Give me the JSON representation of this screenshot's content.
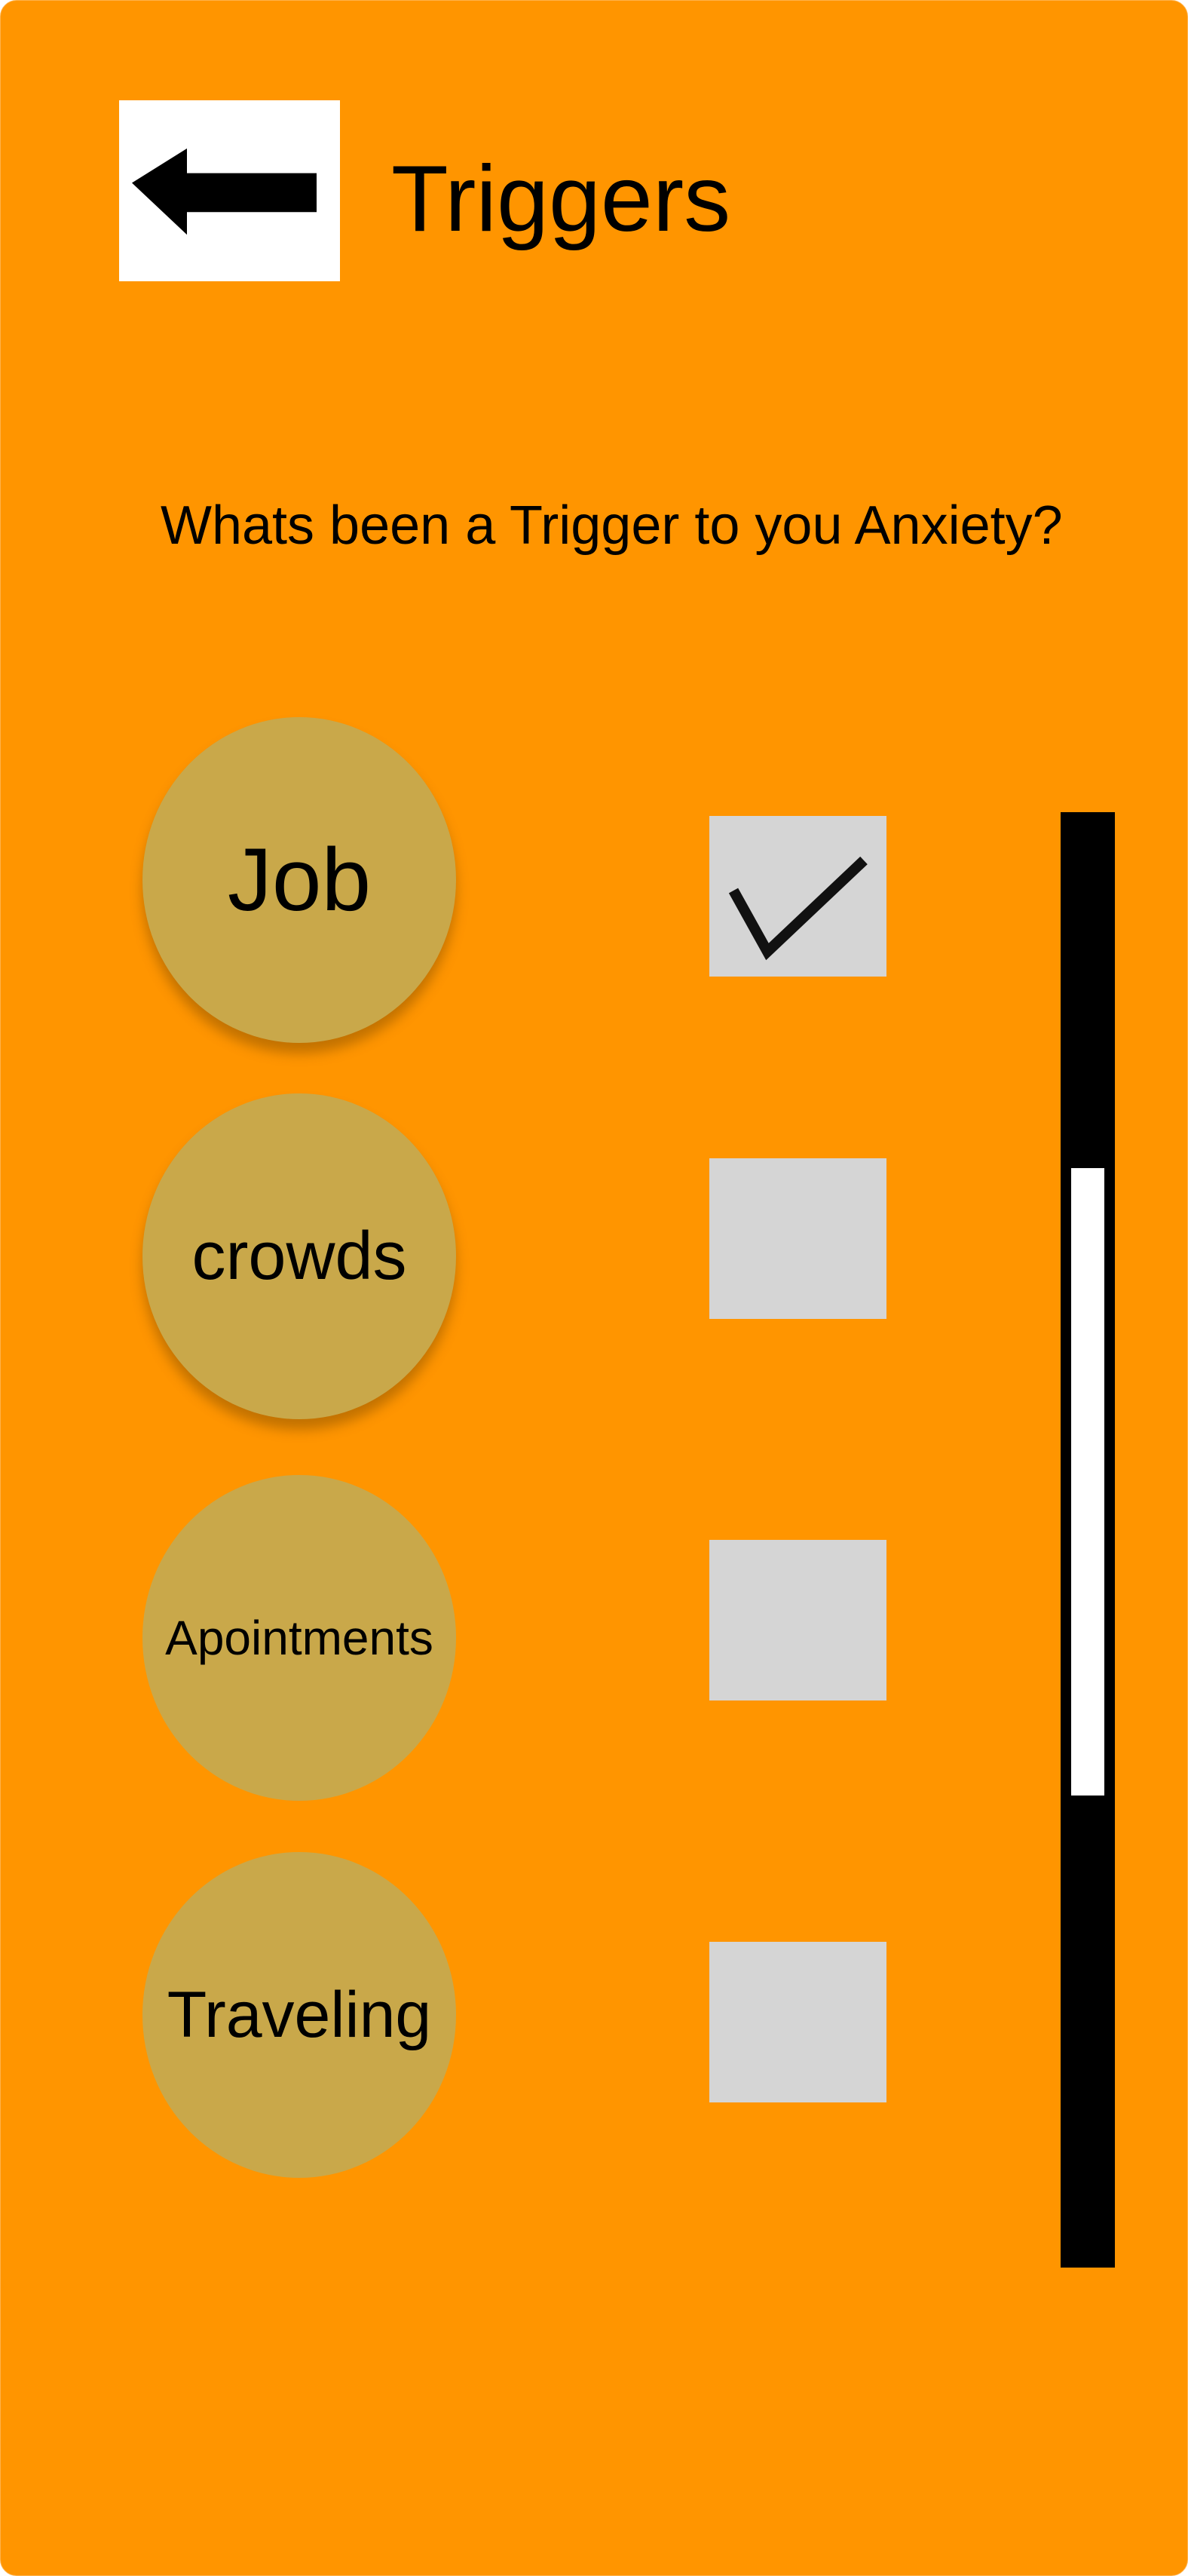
{
  "header": {
    "title": "Triggers",
    "back_icon": "arrow-left-icon"
  },
  "question": "Whats been a Trigger to you Anxiety?",
  "colors": {
    "background": "#ff9500",
    "circle": "#c9a84a",
    "checkbox": "#d5d5d5",
    "scrollbar_track": "#000000",
    "scrollbar_thumb": "#ffffff"
  },
  "triggers": [
    {
      "label": "Job",
      "checked": true
    },
    {
      "label": "crowds",
      "checked": false
    },
    {
      "label": "Apointments",
      "checked": false
    },
    {
      "label": "Traveling",
      "checked": false
    }
  ],
  "scrollbar": {
    "thumb_start_fraction": 0.245,
    "thumb_size_fraction": 0.431
  }
}
